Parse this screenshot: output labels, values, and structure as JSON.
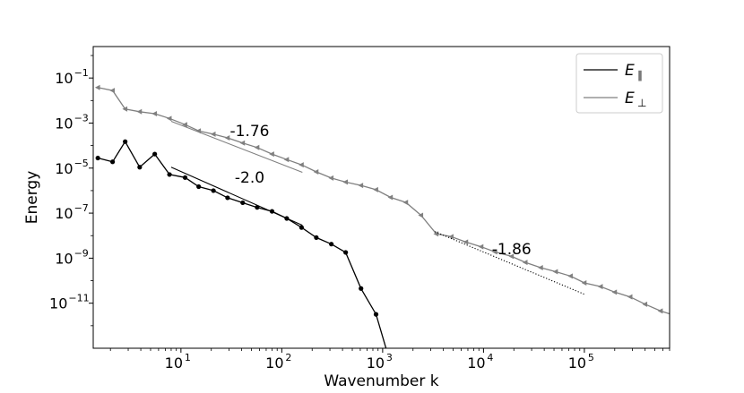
{
  "chart_data": {
    "type": "line",
    "title": "",
    "xlabel": "Wavenumber k",
    "ylabel": "Energy",
    "xscale": "log",
    "yscale": "log",
    "xlim": [
      1.35,
      700000
    ],
    "ylim": [
      1e-13,
      2.5
    ],
    "grid": false,
    "legend_placement": "top-right",
    "x_ticks": [
      {
        "value": 10,
        "mantissa": "10",
        "exp": "1"
      },
      {
        "value": 100,
        "mantissa": "10",
        "exp": "2"
      },
      {
        "value": 1000,
        "mantissa": "10",
        "exp": "3"
      },
      {
        "value": 10000,
        "mantissa": "10",
        "exp": "4"
      },
      {
        "value": 100000,
        "mantissa": "10",
        "exp": "5"
      }
    ],
    "y_ticks": [
      {
        "value": 0.1,
        "mantissa": "10",
        "exp": "−1"
      },
      {
        "value": 0.001,
        "mantissa": "10",
        "exp": "−3"
      },
      {
        "value": 1e-05,
        "mantissa": "10",
        "exp": "−5"
      },
      {
        "value": 1e-07,
        "mantissa": "10",
        "exp": "−7"
      },
      {
        "value": 1e-09,
        "mantissa": "10",
        "exp": "−9"
      },
      {
        "value": 1e-11,
        "mantissa": "10",
        "exp": "−11"
      }
    ],
    "series": [
      {
        "name_base": "E",
        "name_sub": "∥",
        "color": "#000000",
        "marker": "circle",
        "points": [
          [
            1.5,
            2.8e-05
          ],
          [
            2.1,
            1.9e-05
          ],
          [
            2.8,
            0.00015
          ],
          [
            3.9,
            1.1e-05
          ],
          [
            5.5,
            4.2e-05
          ],
          [
            7.7,
            5.2e-06
          ],
          [
            11,
            3.8e-06
          ],
          [
            15,
            1.5e-06
          ],
          [
            21,
            1e-06
          ],
          [
            29,
            4.8e-07
          ],
          [
            41,
            2.9e-07
          ],
          [
            57,
            1.8e-07
          ],
          [
            80,
            1.2e-07
          ],
          [
            112,
            5.8e-08
          ],
          [
            157,
            2.3e-08
          ],
          [
            220,
            8.2e-09
          ],
          [
            310,
            4.2e-09
          ],
          [
            430,
            1.8e-09
          ],
          [
            610,
            4.5e-11
          ],
          [
            860,
            3.2e-12
          ],
          [
            1200,
            2e-14
          ]
        ]
      },
      {
        "name_base": "E",
        "name_sub": "⊥",
        "color": "#808080",
        "marker": "triangle-left",
        "points": [
          [
            1.5,
            0.038
          ],
          [
            2.1,
            0.028
          ],
          [
            2.8,
            0.0042
          ],
          [
            3.9,
            0.0032
          ],
          [
            5.5,
            0.0026
          ],
          [
            7.7,
            0.0016
          ],
          [
            11,
            0.00085
          ],
          [
            15,
            0.00045
          ],
          [
            21,
            0.00032
          ],
          [
            29,
            0.00022
          ],
          [
            41,
            0.00013
          ],
          [
            57,
            8.2e-05
          ],
          [
            80,
            4.2e-05
          ],
          [
            112,
            2.4e-05
          ],
          [
            157,
            1.4e-05
          ],
          [
            220,
            6.8e-06
          ],
          [
            310,
            3.6e-06
          ],
          [
            430,
            2.4e-06
          ],
          [
            610,
            1.7e-06
          ],
          [
            860,
            1.1e-06
          ],
          [
            1200,
            5e-07
          ],
          [
            1700,
            3e-07
          ],
          [
            2400,
            8e-08
          ],
          [
            3400,
            1.2e-08
          ],
          [
            4800,
            9e-09
          ],
          [
            6700,
            5.2e-09
          ],
          [
            9500,
            3.2e-09
          ],
          [
            13000,
            1.9e-09
          ],
          [
            19000,
            1.2e-09
          ],
          [
            26000,
            6.5e-10
          ],
          [
            37000,
            3.8e-10
          ],
          [
            52000,
            2.5e-10
          ],
          [
            73000,
            1.6e-10
          ],
          [
            100000,
            8e-11
          ],
          [
            145000,
            5.5e-11
          ],
          [
            200000,
            3.1e-11
          ],
          [
            285000,
            1.9e-11
          ],
          [
            400000,
            9e-12
          ],
          [
            570000,
            4.5e-12
          ],
          [
            800000,
            2.8e-12
          ]
        ]
      }
    ],
    "reference_lines": [
      {
        "label": "-1.76",
        "color": "#808080",
        "style": "solid",
        "from": [
          8,
          0.0012
        ],
        "to": [
          160,
          6.5e-06
        ],
        "label_at": [
          48,
          0.00027
        ]
      },
      {
        "label": "-2.0",
        "color": "#000000",
        "style": "solid",
        "from": [
          8,
          1.1e-05
        ],
        "to": [
          160,
          2.9e-08
        ],
        "label_at": [
          48,
          2.3e-06
        ]
      },
      {
        "label": "-1.86",
        "color": "#000000",
        "style": "dotted",
        "from": [
          3300,
          1.5e-08
        ],
        "to": [
          100000,
          2.5e-11
        ],
        "label_at": [
          19000,
          1.5e-09
        ]
      }
    ]
  }
}
